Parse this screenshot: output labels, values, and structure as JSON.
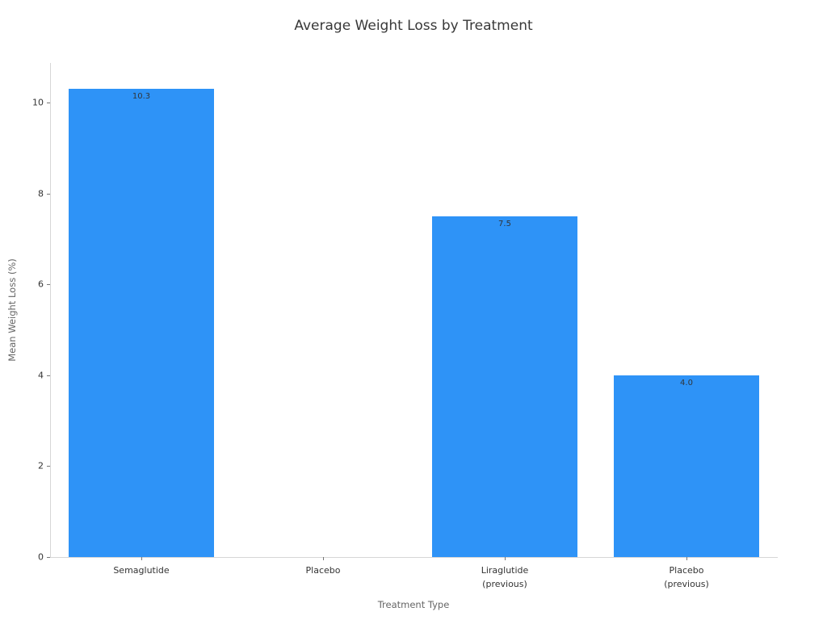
{
  "chart_data": {
    "type": "bar",
    "title": "Average Weight Loss by Treatment",
    "xlabel": "Treatment Type",
    "ylabel": "Mean Weight Loss (%)",
    "categories": [
      "Semaglutide",
      "Placebo",
      "Liraglutide\n(previous)",
      "Placebo\n(previous)"
    ],
    "values": [
      10.3,
      0,
      7.5,
      4.0
    ],
    "bar_labels": [
      "10.3",
      "",
      "7.5",
      "4.0"
    ],
    "yticks": [
      0,
      2,
      4,
      6,
      8,
      10
    ],
    "ylim": [
      0,
      10.87
    ],
    "bar_color": "#2E93F7",
    "grid": false,
    "legend_position": "none"
  }
}
